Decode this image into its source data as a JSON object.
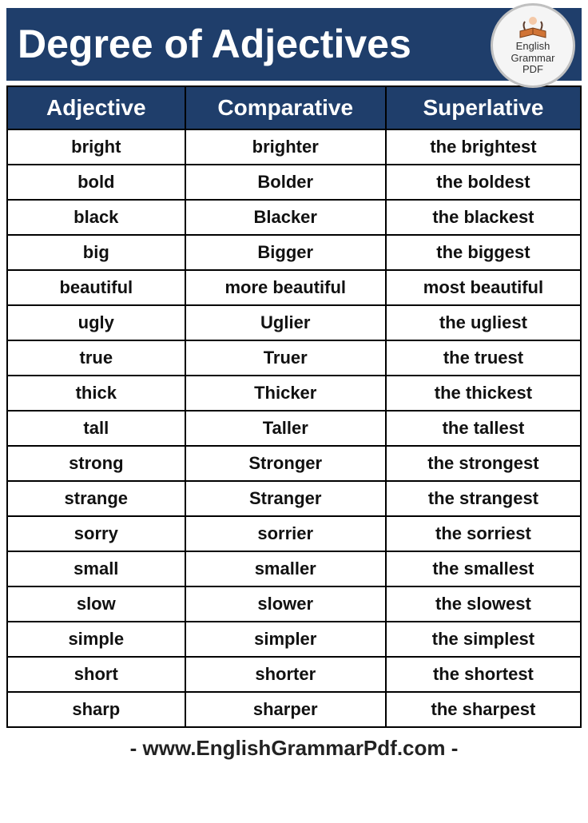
{
  "title": "Degree of Adjectives",
  "logo": {
    "line1": "English",
    "line2": "Grammar",
    "line3": "PDF"
  },
  "table": {
    "type": "table",
    "header_bg": "#1f3e6b",
    "header_fg": "#ffffff",
    "cell_bg": "#ffffff",
    "cell_fg": "#111111",
    "border_color": "#000000",
    "header_fontsize": 28,
    "cell_fontsize": 22,
    "columns": [
      "Adjective",
      "Comparative",
      "Superlative"
    ],
    "col_widths_pct": [
      31,
      35,
      34
    ],
    "rows": [
      [
        "bright",
        "brighter",
        "the brightest"
      ],
      [
        "bold",
        "Bolder",
        "the boldest"
      ],
      [
        "black",
        "Blacker",
        "the blackest"
      ],
      [
        "big",
        "Bigger",
        "the biggest"
      ],
      [
        "beautiful",
        "more beautiful",
        "most beautiful"
      ],
      [
        "ugly",
        "Uglier",
        "the ugliest"
      ],
      [
        "true",
        "Truer",
        "the truest"
      ],
      [
        "thick",
        "Thicker",
        "the thickest"
      ],
      [
        "tall",
        "Taller",
        "the tallest"
      ],
      [
        "strong",
        "Stronger",
        "the strongest"
      ],
      [
        "strange",
        "Stranger",
        "the strangest"
      ],
      [
        "sorry",
        "sorrier",
        "the sorriest"
      ],
      [
        "small",
        "smaller",
        "the smallest"
      ],
      [
        "slow",
        "slower",
        "the slowest"
      ],
      [
        "simple",
        "simpler",
        "the simplest"
      ],
      [
        "short",
        "shorter",
        "the shortest"
      ],
      [
        "sharp",
        "sharper",
        "the sharpest"
      ]
    ]
  },
  "footer": "- www.EnglishGrammarPdf.com -"
}
